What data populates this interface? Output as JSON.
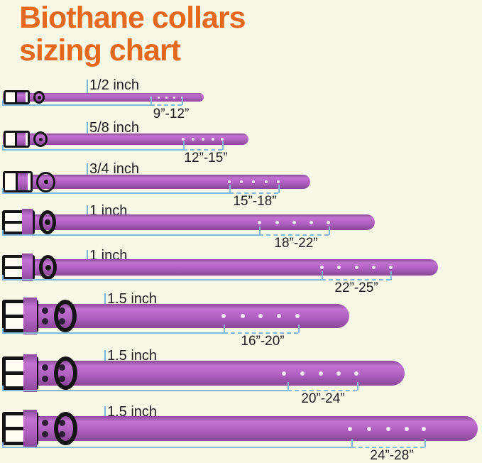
{
  "title": {
    "line1": "Biothane collars",
    "line2": "sizing chart"
  },
  "rows": [
    {
      "width_label": "1/2 inch",
      "size_range": "9”-12”"
    },
    {
      "width_label": "5/8 inch",
      "size_range": "12”-15”"
    },
    {
      "width_label": "3/4 inch",
      "size_range": "15”-18”"
    },
    {
      "width_label": "1 inch",
      "size_range": "18”-22”"
    },
    {
      "width_label": "1 inch",
      "size_range": "22”-25”"
    },
    {
      "width_label": "1.5 inch",
      "size_range": "16”-20”"
    },
    {
      "width_label": "1.5 inch",
      "size_range": "20”-24”"
    },
    {
      "width_label": "1.5 inch",
      "size_range": "24”-28”"
    }
  ],
  "colors": {
    "background": "#f8f8e7",
    "title": "#e5681c",
    "collar": "#b061c0",
    "measure_line": "#85b8d9",
    "text": "#1e1e1e",
    "buckle": "#141414",
    "hole": "#f3e6f6"
  }
}
